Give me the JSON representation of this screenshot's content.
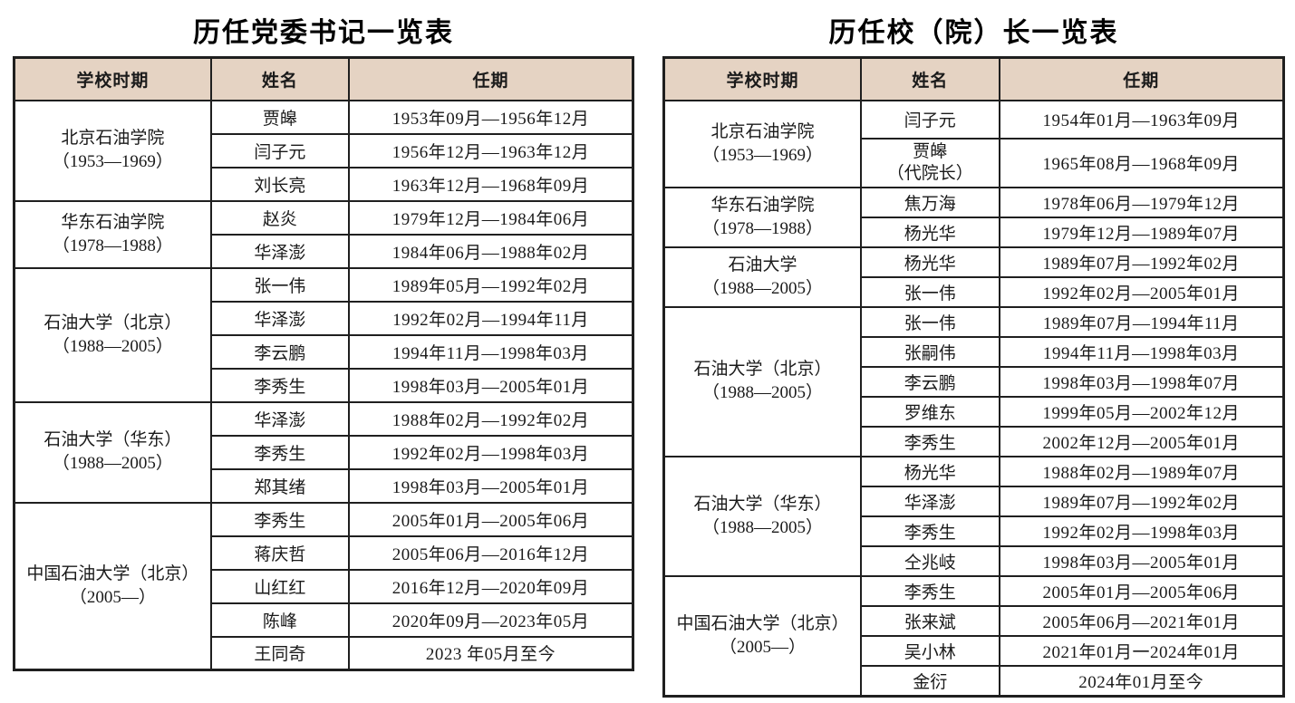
{
  "styles": {
    "header_bg": "#e5d3c3",
    "border_color": "#1f1f1f",
    "text_color": "#1a1a1a"
  },
  "tables": [
    {
      "id": "party-secretaries",
      "title": "历任党委书记一览表",
      "headers": [
        "学校时期",
        "姓名",
        "任期"
      ],
      "groups": [
        {
          "period": "北京石油学院",
          "years": "（1953—1969）",
          "rows": [
            {
              "name": "贾皞",
              "term": "1953年09月—1956年12月"
            },
            {
              "name": "闫子元",
              "term": "1956年12月—1963年12月"
            },
            {
              "name": "刘长亮",
              "term": "1963年12月—1968年09月"
            }
          ]
        },
        {
          "period": "华东石油学院",
          "years": "（1978—1988）",
          "rows": [
            {
              "name": "赵炎",
              "term": "1979年12月—1984年06月"
            },
            {
              "name": "华泽澎",
              "term": "1984年06月—1988年02月"
            }
          ]
        },
        {
          "period": "石油大学（北京）",
          "years": "（1988—2005）",
          "rows": [
            {
              "name": "张一伟",
              "term": "1989年05月—1992年02月"
            },
            {
              "name": "华泽澎",
              "term": "1992年02月—1994年11月"
            },
            {
              "name": "李云鹏",
              "term": "1994年11月—1998年03月"
            },
            {
              "name": "李秀生",
              "term": "1998年03月—2005年01月"
            }
          ]
        },
        {
          "period": "石油大学（华东）",
          "years": "（1988—2005）",
          "rows": [
            {
              "name": "华泽澎",
              "term": "1988年02月—1992年02月"
            },
            {
              "name": "李秀生",
              "term": "1992年02月—1998年03月"
            },
            {
              "name": "郑其绪",
              "term": "1998年03月—2005年01月"
            }
          ]
        },
        {
          "period": "中国石油大学（北京）",
          "years": "（2005—）",
          "rows": [
            {
              "name": "李秀生",
              "term": "2005年01月—2005年06月"
            },
            {
              "name": "蒋庆哲",
              "term": "2005年06月—2016年12月"
            },
            {
              "name": "山红红",
              "term": "2016年12月—2020年09月"
            },
            {
              "name": "陈峰",
              "term": "2020年09月—2023年05月"
            },
            {
              "name": "王同奇",
              "term": "2023 年05月至今"
            }
          ]
        }
      ]
    },
    {
      "id": "presidents",
      "title": "历任校（院）长一览表",
      "headers": [
        "学校时期",
        "姓名",
        "任期"
      ],
      "groups": [
        {
          "period": "北京石油学院",
          "years": "（1953—1969）",
          "rows": [
            {
              "name": "闫子元",
              "term": "1954年01月—1963年09月"
            },
            {
              "name": "贾皞",
              "note": "（代院长）",
              "term": "1965年08月—1968年09月"
            }
          ]
        },
        {
          "period": "华东石油学院",
          "years": "（1978—1988）",
          "rows": [
            {
              "name": "焦万海",
              "term": "1978年06月—1979年12月"
            },
            {
              "name": "杨光华",
              "term": "1979年12月—1989年07月"
            }
          ]
        },
        {
          "period": "石油大学",
          "years": "（1988—2005）",
          "rows": [
            {
              "name": "杨光华",
              "term": "1989年07月—1992年02月"
            },
            {
              "name": "张一伟",
              "term": "1992年02月—2005年01月"
            }
          ]
        },
        {
          "period": "石油大学（北京）",
          "years": "（1988—2005）",
          "rows": [
            {
              "name": "张一伟",
              "term": "1989年07月—1994年11月"
            },
            {
              "name": "张嗣伟",
              "term": "1994年11月—1998年03月"
            },
            {
              "name": "李云鹏",
              "term": "1998年03月—1998年07月"
            },
            {
              "name": "罗维东",
              "term": "1999年05月—2002年12月"
            },
            {
              "name": "李秀生",
              "term": "2002年12月—2005年01月"
            }
          ]
        },
        {
          "period": "石油大学（华东）",
          "years": "（1988—2005）",
          "rows": [
            {
              "name": "杨光华",
              "term": "1988年02月—1989年07月"
            },
            {
              "name": "华泽澎",
              "term": "1989年07月—1992年02月"
            },
            {
              "name": "李秀生",
              "term": "1992年02月—1998年03月"
            },
            {
              "name": "仝兆岐",
              "term": "1998年03月—2005年01月"
            }
          ]
        },
        {
          "period": "中国石油大学（北京）",
          "years": "（2005—）",
          "rows": [
            {
              "name": "李秀生",
              "term": "2005年01月—2005年06月"
            },
            {
              "name": "张来斌",
              "term": "2005年06月—2021年01月"
            },
            {
              "name": "吴小林",
              "term": "2021年01月一2024年01月"
            },
            {
              "name": "金衍",
              "term": "2024年01月至今"
            }
          ]
        }
      ]
    }
  ]
}
